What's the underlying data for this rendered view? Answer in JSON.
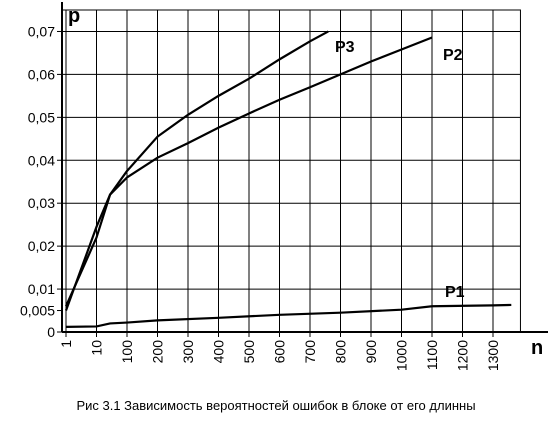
{
  "chart_data": {
    "type": "line",
    "x_label": "n",
    "y_label": "p",
    "caption": "Рис 3.1 Зависимость вероятностей ошибок в блоке от его длинны",
    "xlim": [
      1,
      1390
    ],
    "xticks": [
      1,
      10,
      100,
      200,
      300,
      400,
      500,
      600,
      700,
      800,
      900,
      1000,
      1100,
      1200,
      1300
    ],
    "ylim": [
      0,
      0.075
    ],
    "yticks": [
      0,
      {
        "value": 0.005,
        "label": "0,005"
      },
      {
        "value": 0.01,
        "label": "0,01"
      },
      {
        "value": 0.02,
        "label": "0,02"
      },
      {
        "value": 0.03,
        "label": "0,03"
      },
      {
        "value": 0.04,
        "label": "0,04"
      },
      {
        "value": 0.05,
        "label": "0,05"
      },
      {
        "value": 0.06,
        "label": "0,06"
      },
      {
        "value": 0.07,
        "label": "0,07"
      }
    ],
    "grid": true,
    "series": [
      {
        "name": "P3",
        "color": "#000000",
        "x": [
          1,
          10,
          50,
          100,
          200,
          300,
          400,
          500,
          600,
          700,
          760
        ],
        "values": [
          0.006,
          0.022,
          0.032,
          0.0375,
          0.0455,
          0.0506,
          0.055,
          0.059,
          0.0635,
          0.0677,
          0.07
        ]
      },
      {
        "name": "P2",
        "color": "#000000",
        "x": [
          1,
          10,
          50,
          100,
          200,
          300,
          400,
          500,
          600,
          700,
          800,
          900,
          1000,
          1100
        ],
        "values": [
          0.005,
          0.0245,
          0.032,
          0.036,
          0.0406,
          0.044,
          0.0476,
          0.0509,
          0.0541,
          0.057,
          0.06,
          0.063,
          0.0658,
          0.0686
        ]
      },
      {
        "name": "P1",
        "color": "#000000",
        "x": [
          1,
          10,
          50,
          100,
          200,
          400,
          600,
          800,
          1000,
          1100,
          1300,
          1360
        ],
        "values": [
          0.0012,
          0.0013,
          0.002,
          0.0022,
          0.0027,
          0.0033,
          0.004,
          0.0045,
          0.0052,
          0.006,
          0.0062,
          0.0063
        ]
      }
    ]
  }
}
